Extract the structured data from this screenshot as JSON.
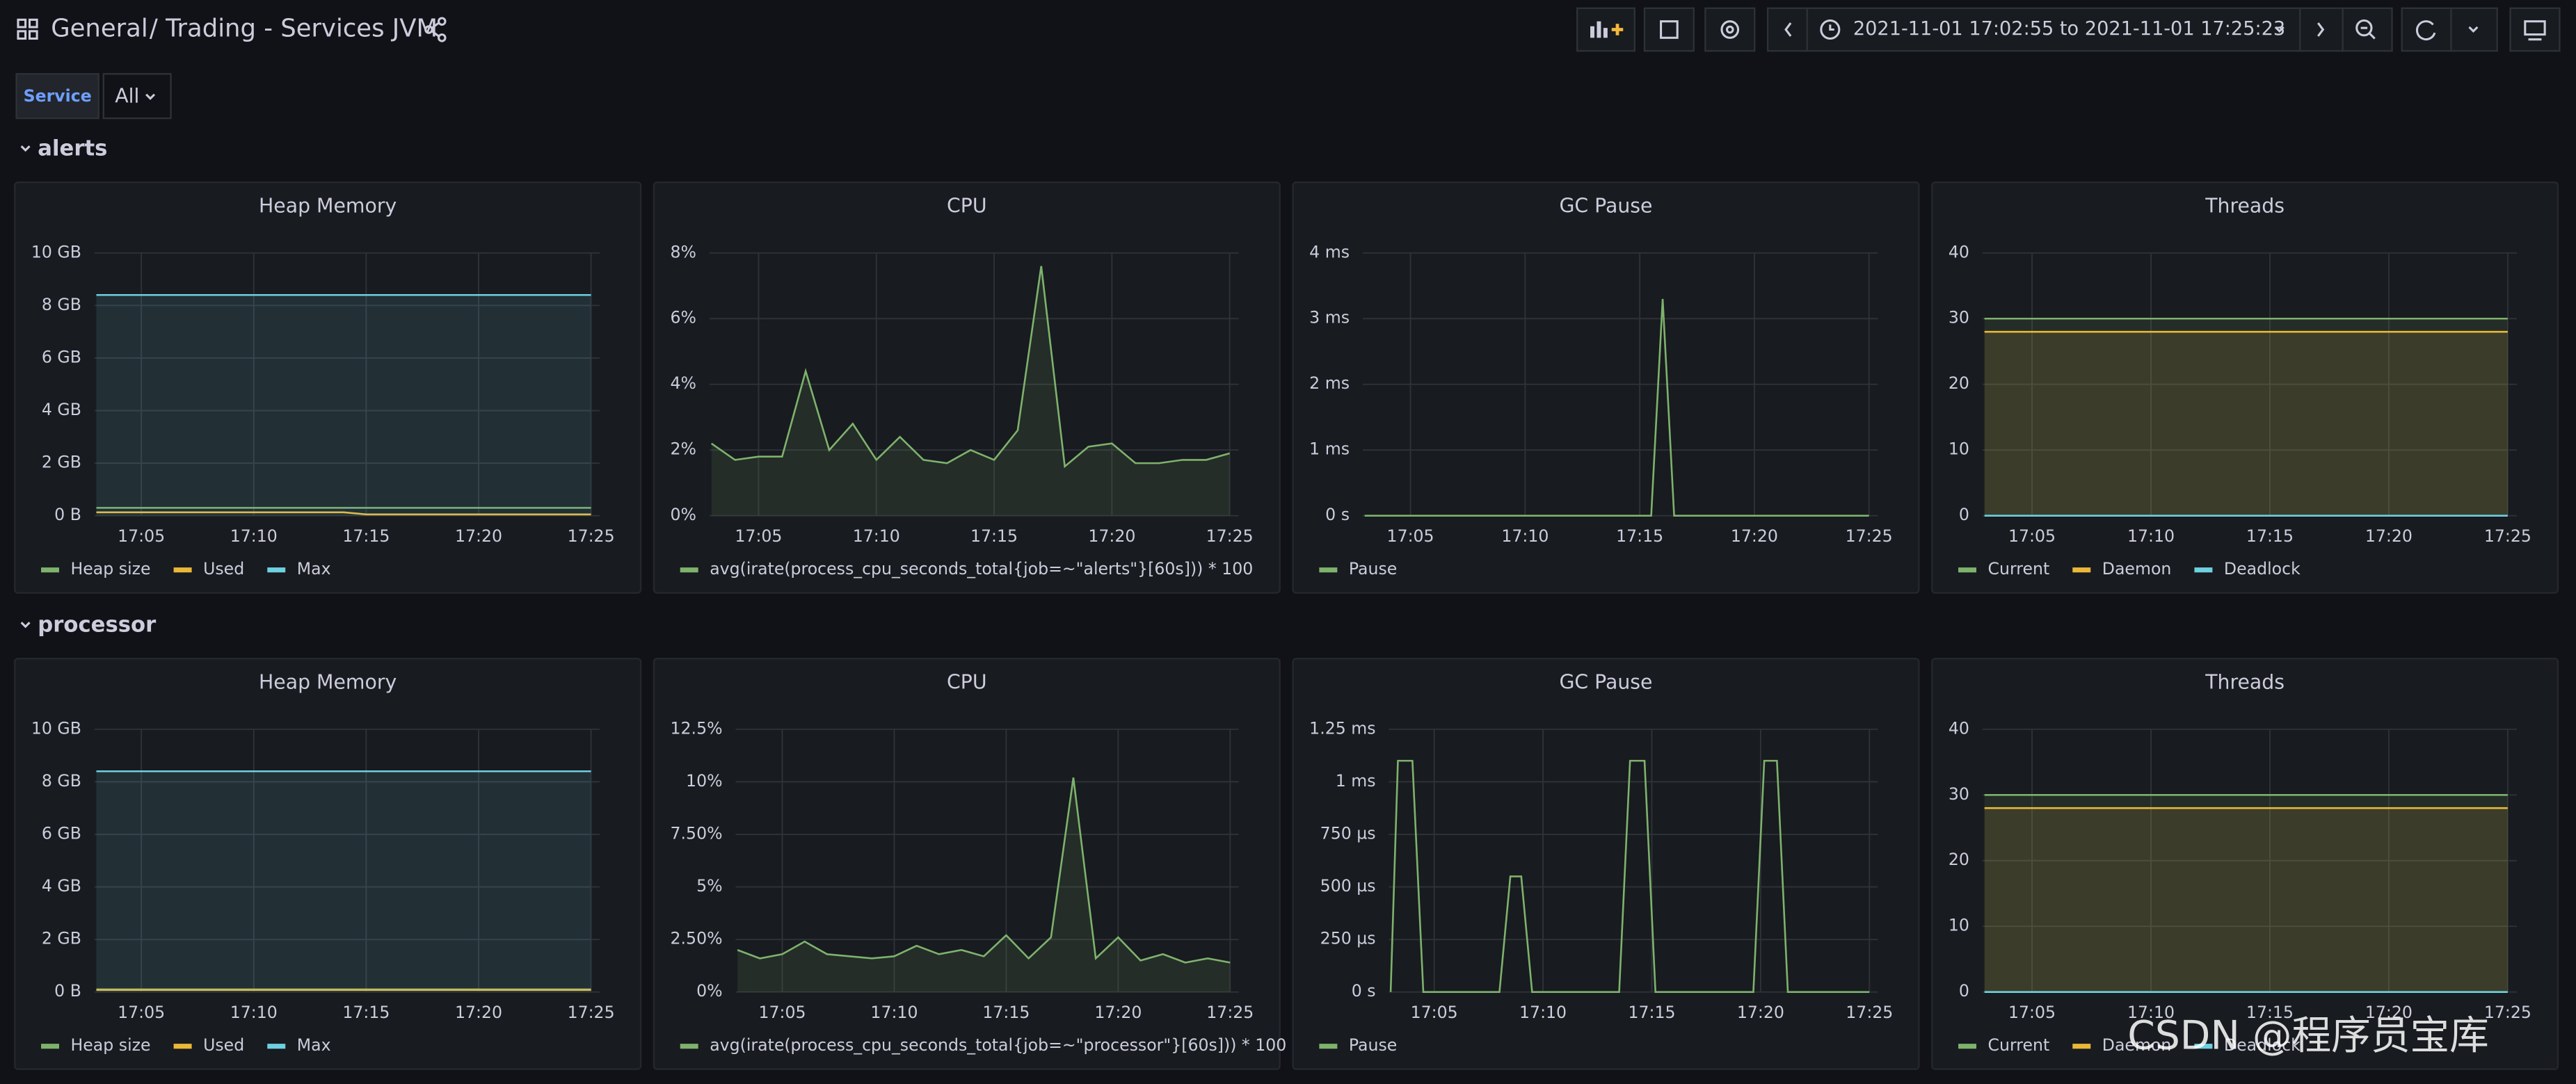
{
  "header": {
    "breadcrumb": "General",
    "title": "/ Trading - Services JVM",
    "time_range": "2021-11-01 17:02:55 to 2021-11-01 17:25:23"
  },
  "variables": [
    {
      "label": "Service",
      "value": "All"
    }
  ],
  "rows": [
    {
      "title": "alerts",
      "panels": [
        {
          "type": "line",
          "title": "Heap Memory",
          "x": [
            "17:03",
            "17:14",
            "17:15",
            "17:25"
          ],
          "xlim": [
            "17:02:55",
            "17:25:23"
          ],
          "xticks": [
            "17:05",
            "17:10",
            "17:15",
            "17:20",
            "17:25"
          ],
          "ylim": [
            0,
            10
          ],
          "yticks": [
            {
              "value": 0,
              "label": "0 B"
            },
            {
              "value": 2,
              "label": "2 GB"
            },
            {
              "value": 4,
              "label": "4 GB"
            },
            {
              "value": 6,
              "label": "6 GB"
            },
            {
              "value": 8,
              "label": "8 GB"
            },
            {
              "value": 10,
              "label": "10 GB"
            }
          ],
          "grid": true,
          "series": [
            {
              "name": "Heap size",
              "color": "#7eb26d",
              "values": [
                0.3,
                0.3,
                0.3,
                0.3
              ],
              "fill": false
            },
            {
              "name": "Used",
              "color": "#eab839",
              "values": [
                0.13,
                0.13,
                0.05,
                0.05
              ],
              "fill": false
            },
            {
              "name": "Max",
              "color": "#6ed0e0",
              "values": [
                8.4,
                8.4,
                8.4,
                8.4
              ],
              "fill": true
            }
          ]
        },
        {
          "type": "line",
          "title": "CPU",
          "x": [
            "17:03",
            "17:04",
            "17:05",
            "17:06",
            "17:07",
            "17:08",
            "17:09",
            "17:10",
            "17:11",
            "17:12",
            "17:13",
            "17:14",
            "17:15",
            "17:16",
            "17:17",
            "17:18",
            "17:19",
            "17:20",
            "17:21",
            "17:22",
            "17:23",
            "17:24",
            "17:25"
          ],
          "xlim": [
            "17:02:55",
            "17:25:23"
          ],
          "xticks": [
            "17:05",
            "17:10",
            "17:15",
            "17:20",
            "17:25"
          ],
          "ylim": [
            0,
            8
          ],
          "yticks": [
            {
              "value": 0,
              "label": "0%"
            },
            {
              "value": 2,
              "label": "2%"
            },
            {
              "value": 4,
              "label": "4%"
            },
            {
              "value": 6,
              "label": "6%"
            },
            {
              "value": 8,
              "label": "8%"
            }
          ],
          "grid": true,
          "series": [
            {
              "name": "avg(irate(process_cpu_seconds_total{job=~\"alerts\"}[60s])) * 100",
              "color": "#7eb26d",
              "values": [
                2.2,
                1.7,
                1.8,
                1.8,
                4.4,
                2.0,
                2.8,
                1.7,
                2.4,
                1.7,
                1.6,
                2.0,
                1.7,
                2.6,
                7.6,
                1.5,
                2.1,
                2.2,
                1.6,
                1.6,
                1.7,
                1.7,
                1.9
              ],
              "fill": true
            }
          ]
        },
        {
          "type": "line",
          "title": "GC Pause",
          "x": [
            "17:03",
            "17:15:30",
            "17:16",
            "17:16:30",
            "17:25"
          ],
          "xlim": [
            "17:02:55",
            "17:25:23"
          ],
          "xticks": [
            "17:05",
            "17:10",
            "17:15",
            "17:20",
            "17:25"
          ],
          "ylim": [
            0,
            4
          ],
          "yticks": [
            {
              "value": 0,
              "label": "0 s"
            },
            {
              "value": 1,
              "label": "1 ms"
            },
            {
              "value": 2,
              "label": "2 ms"
            },
            {
              "value": 3,
              "label": "3 ms"
            },
            {
              "value": 4,
              "label": "4 ms"
            }
          ],
          "grid": true,
          "series": [
            {
              "name": "Pause",
              "color": "#7eb26d",
              "values": [
                0,
                0,
                3.3,
                0,
                0
              ],
              "fill": false
            }
          ]
        },
        {
          "type": "line",
          "title": "Threads",
          "x": [
            "17:03",
            "17:25"
          ],
          "xlim": [
            "17:02:55",
            "17:25:23"
          ],
          "xticks": [
            "17:05",
            "17:10",
            "17:15",
            "17:20",
            "17:25"
          ],
          "ylim": [
            0,
            40
          ],
          "yticks": [
            0,
            10,
            20,
            30,
            40
          ],
          "grid": true,
          "series": [
            {
              "name": "Current",
              "color": "#7eb26d",
              "values": [
                30,
                30
              ],
              "fill": true
            },
            {
              "name": "Daemon",
              "color": "#eab839",
              "values": [
                28,
                28
              ],
              "fill": true
            },
            {
              "name": "Deadlock",
              "color": "#6ed0e0",
              "values": [
                0,
                0
              ],
              "fill": false
            }
          ]
        }
      ]
    },
    {
      "title": "processor",
      "panels": [
        {
          "type": "line",
          "title": "Heap Memory",
          "x": [
            "17:03",
            "17:25"
          ],
          "xlim": [
            "17:02:55",
            "17:25:23"
          ],
          "xticks": [
            "17:05",
            "17:10",
            "17:15",
            "17:20",
            "17:25"
          ],
          "ylim": [
            0,
            10
          ],
          "yticks": [
            {
              "value": 0,
              "label": "0 B"
            },
            {
              "value": 2,
              "label": "2 GB"
            },
            {
              "value": 4,
              "label": "4 GB"
            },
            {
              "value": 6,
              "label": "6 GB"
            },
            {
              "value": 8,
              "label": "8 GB"
            },
            {
              "value": 10,
              "label": "10 GB"
            }
          ],
          "grid": true,
          "series": [
            {
              "name": "Heap size",
              "color": "#7eb26d",
              "values": [
                0.1,
                0.1
              ],
              "fill": false
            },
            {
              "name": "Used",
              "color": "#eab839",
              "values": [
                0.08,
                0.08
              ],
              "fill": false
            },
            {
              "name": "Max",
              "color": "#6ed0e0",
              "values": [
                8.4,
                8.4
              ],
              "fill": true
            }
          ]
        },
        {
          "type": "line",
          "title": "CPU",
          "x": [
            "17:03",
            "17:04",
            "17:05",
            "17:06",
            "17:07",
            "17:08",
            "17:09",
            "17:10",
            "17:11",
            "17:12",
            "17:13",
            "17:14",
            "17:15",
            "17:16",
            "17:17",
            "17:18",
            "17:19",
            "17:20",
            "17:21",
            "17:22",
            "17:23",
            "17:24",
            "17:25"
          ],
          "xlim": [
            "17:02:55",
            "17:25:23"
          ],
          "xticks": [
            "17:05",
            "17:10",
            "17:15",
            "17:20",
            "17:25"
          ],
          "ylim": [
            0,
            12.5
          ],
          "yticks": [
            {
              "value": 0,
              "label": "0%"
            },
            {
              "value": 2.5,
              "label": "2.50%"
            },
            {
              "value": 5,
              "label": "5%"
            },
            {
              "value": 7.5,
              "label": "7.50%"
            },
            {
              "value": 10,
              "label": "10%"
            },
            {
              "value": 12.5,
              "label": "12.5%"
            }
          ],
          "grid": true,
          "series": [
            {
              "name": "avg(irate(process_cpu_seconds_total{job=~\"processor\"}[60s])) * 100",
              "color": "#7eb26d",
              "values": [
                2.0,
                1.6,
                1.8,
                2.4,
                1.8,
                1.7,
                1.6,
                1.7,
                2.2,
                1.8,
                2.0,
                1.7,
                2.7,
                1.6,
                2.6,
                10.2,
                1.6,
                2.6,
                1.5,
                1.8,
                1.4,
                1.6,
                1.4
              ],
              "fill": true
            }
          ]
        },
        {
          "type": "line",
          "title": "GC Pause",
          "x": [
            "17:03",
            "17:03:20",
            "17:04",
            "17:04:30",
            "17:08",
            "17:08:30",
            "17:09",
            "17:09:30",
            "17:13:30",
            "17:14",
            "17:14:40",
            "17:15:10",
            "17:19:40",
            "17:20:10",
            "17:20:45",
            "17:21:15",
            "17:25"
          ],
          "xlim": [
            "17:02:55",
            "17:25:23"
          ],
          "xticks": [
            "17:05",
            "17:10",
            "17:15",
            "17:20",
            "17:25"
          ],
          "ylim": [
            0,
            1.25
          ],
          "yticks": [
            {
              "value": 0,
              "label": "0 s"
            },
            {
              "value": 0.25,
              "label": "250 µs"
            },
            {
              "value": 0.5,
              "label": "500 µs"
            },
            {
              "value": 0.75,
              "label": "750 µs"
            },
            {
              "value": 1,
              "label": "1 ms"
            },
            {
              "value": 1.25,
              "label": "1.25 ms"
            }
          ],
          "grid": true,
          "series": [
            {
              "name": "Pause",
              "color": "#7eb26d",
              "values": [
                0,
                1.1,
                1.1,
                0,
                0,
                0.55,
                0.55,
                0,
                0,
                1.1,
                1.1,
                0,
                0,
                1.1,
                1.1,
                0,
                0
              ],
              "fill": false
            }
          ]
        },
        {
          "type": "line",
          "title": "Threads",
          "x": [
            "17:03",
            "17:25"
          ],
          "xlim": [
            "17:02:55",
            "17:25:23"
          ],
          "xticks": [
            "17:05",
            "17:10",
            "17:15",
            "17:20",
            "17:25"
          ],
          "ylim": [
            0,
            40
          ],
          "yticks": [
            0,
            10,
            20,
            30,
            40
          ],
          "grid": true,
          "series": [
            {
              "name": "Current",
              "color": "#7eb26d",
              "values": [
                30,
                30
              ],
              "fill": true
            },
            {
              "name": "Daemon",
              "color": "#eab839",
              "values": [
                28,
                28
              ],
              "fill": true
            },
            {
              "name": "Deadlock",
              "color": "#6ed0e0",
              "values": [
                0,
                0
              ],
              "fill": false
            }
          ]
        }
      ]
    }
  ],
  "watermark": "CSDN @程序员宝库"
}
